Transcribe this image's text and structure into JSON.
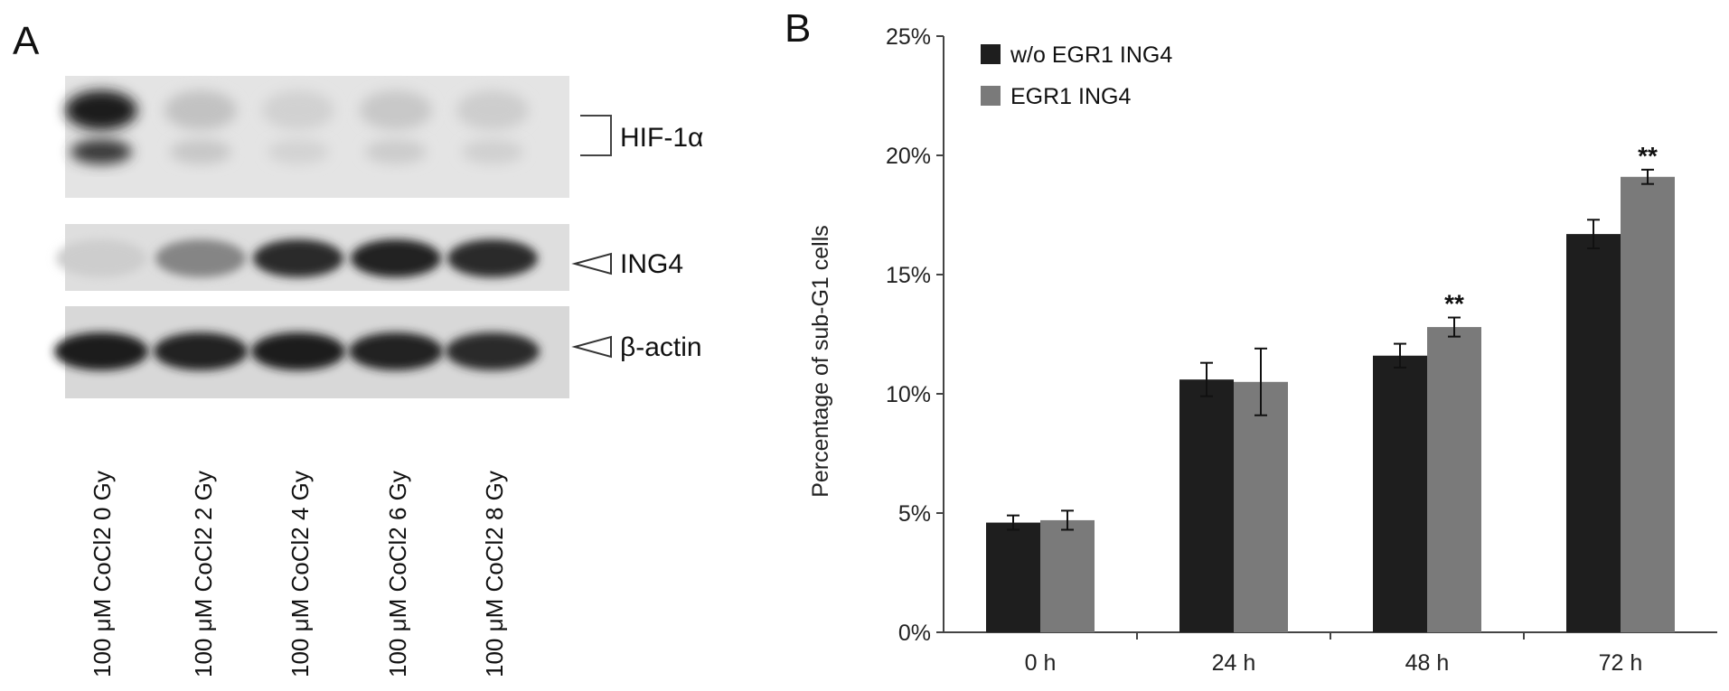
{
  "panel_a": {
    "letter": "A",
    "blots": [
      {
        "label": "HIF-1α",
        "marker": "bracket"
      },
      {
        "label": "ING4",
        "marker": "arrow"
      },
      {
        "label": "β-actin",
        "marker": "arrow"
      }
    ],
    "lanes": [
      "100 μM CoCl2 0 Gy",
      "100 μM CoCl2 2 Gy",
      "100 μM CoCl2 4 Gy",
      "100 μM CoCl2 6 Gy",
      "100 μM CoCl2 8 Gy"
    ],
    "band_intensity": {
      "HIF-1α": [
        0.95,
        0.15,
        0.08,
        0.12,
        0.1
      ],
      "ING4": [
        0.1,
        0.45,
        0.9,
        0.92,
        0.9
      ],
      "β-actin": [
        0.95,
        0.93,
        0.95,
        0.92,
        0.9
      ]
    }
  },
  "panel_b": {
    "letter": "B"
  },
  "chart_data": {
    "type": "bar",
    "categories": [
      "0 h",
      "24 h",
      "48 h",
      "72 h"
    ],
    "series": [
      {
        "name": "w/o EGR1 ING4",
        "color": "#1e1e1e",
        "values": [
          4.6,
          10.6,
          11.6,
          16.7
        ],
        "errors": [
          0.3,
          0.7,
          0.5,
          0.6
        ],
        "annotations": [
          "",
          "",
          "",
          ""
        ]
      },
      {
        "name": "EGR1 ING4",
        "color": "#7a7a7a",
        "values": [
          4.7,
          10.5,
          12.8,
          19.1
        ],
        "errors": [
          0.4,
          1.4,
          0.4,
          0.3
        ],
        "annotations": [
          "",
          "",
          "**",
          "**"
        ]
      }
    ],
    "xlabel": "",
    "ylabel": "Percentage of sub-G1 cells",
    "ylim": [
      0,
      25
    ],
    "yticks": [
      "0%",
      "5%",
      "10%",
      "15%",
      "20%",
      "25%"
    ],
    "grid": false,
    "legend_position": "top-left"
  }
}
